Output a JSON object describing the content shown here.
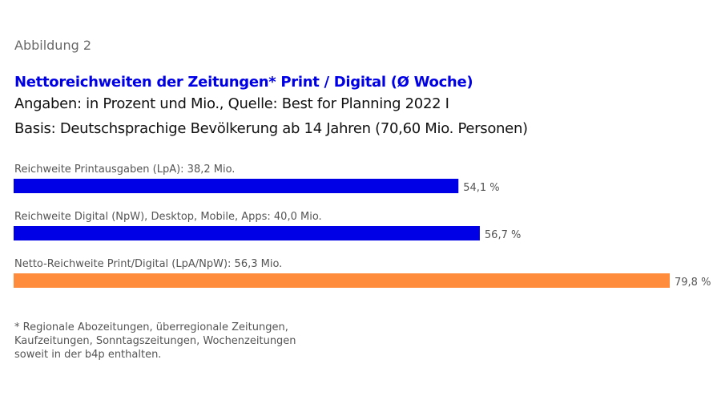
{
  "figure_label": "Abbildung 2",
  "title": "Nettoreichweiten der Zeitungen* Print / Digital (Ø Woche)",
  "subtitle_lines": [
    "Angaben: in Prozent und Mio., Quelle: Best for Planning 2022 I",
    "Basis: Deutschsprachige Bevölkerung ab 14 Jahren (70,60 Mio. Personen)"
  ],
  "chart_data": {
    "type": "bar",
    "orientation": "horizontal",
    "categories": [
      "Reichweite Printausgaben (LpA): 38,2 Mio.",
      "Reichweite Digital (NpW), Desktop, Mobile, Apps: 40,0 Mio.",
      "Netto-Reichweite Print/Digital (LpA/NpW): 56,3 Mio."
    ],
    "values": [
      54.1,
      56.7,
      79.8
    ],
    "value_labels": [
      "54,1 %",
      "56,7 %",
      "79,8 %"
    ],
    "colors": [
      "#0000e6",
      "#0000e6",
      "#ff8c3c"
    ],
    "unit": "%",
    "xlim": [
      0,
      80
    ],
    "grid": false
  },
  "footnote": [
    "* Regionale Abozeitungen, überregionale Zeitungen,",
    "Kaufzeitungen, Sonntagszeitungen, Wochenzeitungen",
    "soweit in der b4p enthalten."
  ]
}
